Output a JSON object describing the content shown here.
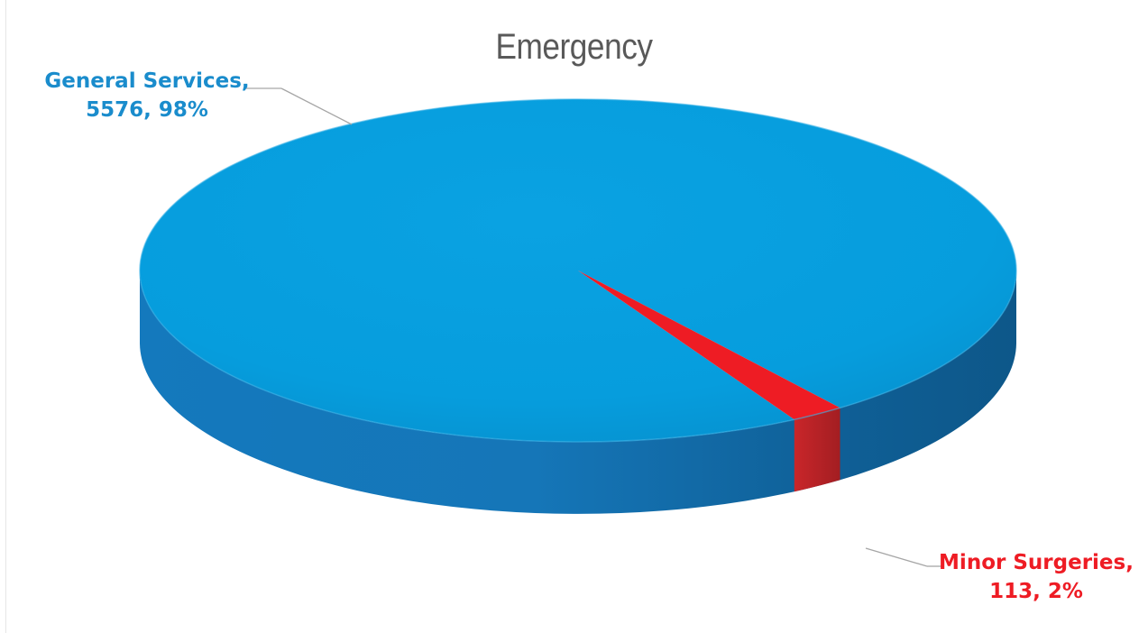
{
  "chart_data": {
    "type": "pie",
    "title": "Emergency",
    "style": "3d",
    "slices": [
      {
        "label": "General Services",
        "value": 5576,
        "percent": "98%",
        "color": "#139ad6"
      },
      {
        "label": "Minor Surgeries",
        "value": 113,
        "percent": "2%",
        "color": "#ee1c24"
      }
    ]
  },
  "labels": {
    "general_line1": "General Services,",
    "general_line2": "5576, 98%",
    "minor_line1": "Minor Surgeries,",
    "minor_line2": "113, 2%"
  }
}
